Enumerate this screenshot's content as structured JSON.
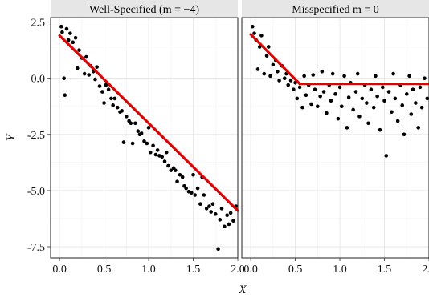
{
  "chart_data": {
    "type": "scatter",
    "xlabel": "X",
    "ylabel": "Y",
    "xlim": [
      -0.1,
      2.0
    ],
    "ylim": [
      -8.0,
      2.7
    ],
    "x_ticks": [
      0.0,
      0.5,
      1.0,
      1.5,
      2.0
    ],
    "x_tick_labels": [
      "0.0",
      "0.5",
      "1.0",
      "1.5",
      "2.0"
    ],
    "y_ticks": [
      2.5,
      0.0,
      -2.5,
      -5.0,
      -7.5
    ],
    "y_tick_labels": [
      "2.5",
      "0.0",
      "-2.5",
      "-5.0",
      "-7.5"
    ],
    "grid": true,
    "colors": {
      "points": "#000000",
      "fit": "#e00000",
      "strip": "#e6e6e6"
    },
    "panels": [
      {
        "title": "Well-Specified (m = −4)",
        "fit_line": {
          "x": [
            0.0,
            2.0
          ],
          "y": [
            1.9,
            -5.9
          ]
        },
        "points": [
          [
            0.02,
            2.3
          ],
          [
            0.03,
            2.05
          ],
          [
            0.05,
            0.0
          ],
          [
            0.06,
            -0.75
          ],
          [
            0.08,
            2.2
          ],
          [
            0.1,
            1.7
          ],
          [
            0.12,
            2.0
          ],
          [
            0.15,
            1.6
          ],
          [
            0.18,
            1.8
          ],
          [
            0.2,
            0.45
          ],
          [
            0.22,
            1.25
          ],
          [
            0.25,
            0.9
          ],
          [
            0.28,
            0.2
          ],
          [
            0.3,
            0.95
          ],
          [
            0.33,
            0.15
          ],
          [
            0.35,
            0.55
          ],
          [
            0.38,
            0.3
          ],
          [
            0.4,
            -0.05
          ],
          [
            0.42,
            0.5
          ],
          [
            0.45,
            -0.35
          ],
          [
            0.48,
            -0.6
          ],
          [
            0.5,
            -1.1
          ],
          [
            0.52,
            -0.3
          ],
          [
            0.55,
            -0.5
          ],
          [
            0.58,
            -0.9
          ],
          [
            0.6,
            -1.2
          ],
          [
            0.62,
            -0.9
          ],
          [
            0.65,
            -1.3
          ],
          [
            0.68,
            -1.5
          ],
          [
            0.7,
            -1.45
          ],
          [
            0.72,
            -2.85
          ],
          [
            0.75,
            -1.7
          ],
          [
            0.78,
            -1.9
          ],
          [
            0.8,
            -2.0
          ],
          [
            0.82,
            -2.9
          ],
          [
            0.85,
            -2.0
          ],
          [
            0.88,
            -2.35
          ],
          [
            0.9,
            -2.5
          ],
          [
            0.92,
            -2.45
          ],
          [
            0.95,
            -2.8
          ],
          [
            0.98,
            -2.9
          ],
          [
            1.0,
            -2.2
          ],
          [
            1.02,
            -3.3
          ],
          [
            1.05,
            -3.0
          ],
          [
            1.08,
            -3.4
          ],
          [
            1.1,
            -3.2
          ],
          [
            1.12,
            -3.45
          ],
          [
            1.15,
            -3.5
          ],
          [
            1.18,
            -3.7
          ],
          [
            1.2,
            -3.3
          ],
          [
            1.22,
            -3.9
          ],
          [
            1.25,
            -4.1
          ],
          [
            1.28,
            -4.0
          ],
          [
            1.3,
            -4.1
          ],
          [
            1.32,
            -4.6
          ],
          [
            1.35,
            -4.3
          ],
          [
            1.38,
            -4.4
          ],
          [
            1.4,
            -4.8
          ],
          [
            1.42,
            -4.9
          ],
          [
            1.45,
            -5.05
          ],
          [
            1.48,
            -5.1
          ],
          [
            1.5,
            -4.3
          ],
          [
            1.52,
            -5.2
          ],
          [
            1.55,
            -4.9
          ],
          [
            1.58,
            -5.6
          ],
          [
            1.6,
            -4.4
          ],
          [
            1.62,
            -5.2
          ],
          [
            1.65,
            -5.8
          ],
          [
            1.68,
            -5.7
          ],
          [
            1.7,
            -5.95
          ],
          [
            1.72,
            -5.6
          ],
          [
            1.75,
            -6.05
          ],
          [
            1.78,
            -7.6
          ],
          [
            1.8,
            -6.3
          ],
          [
            1.82,
            -5.8
          ],
          [
            1.85,
            -6.6
          ],
          [
            1.88,
            -6.1
          ],
          [
            1.9,
            -6.5
          ],
          [
            1.92,
            -6.0
          ],
          [
            1.95,
            -6.35
          ],
          [
            1.98,
            -5.7
          ]
        ]
      },
      {
        "title": "Misspecified m = 0",
        "fit_line": {
          "x": [
            0.0,
            0.55,
            2.0
          ],
          "y": [
            1.95,
            -0.25,
            -0.25
          ]
        },
        "points": [
          [
            0.02,
            2.3
          ],
          [
            0.04,
            2.0
          ],
          [
            0.06,
            1.7
          ],
          [
            0.08,
            0.4
          ],
          [
            0.1,
            1.4
          ],
          [
            0.12,
            1.9
          ],
          [
            0.15,
            0.2
          ],
          [
            0.18,
            1.0
          ],
          [
            0.2,
            1.4
          ],
          [
            0.22,
            0.1
          ],
          [
            0.25,
            0.6
          ],
          [
            0.28,
            0.8
          ],
          [
            0.3,
            0.3
          ],
          [
            0.32,
            -0.1
          ],
          [
            0.35,
            0.55
          ],
          [
            0.38,
            0.0
          ],
          [
            0.4,
            0.2
          ],
          [
            0.42,
            -0.3
          ],
          [
            0.45,
            -0.1
          ],
          [
            0.48,
            -0.5
          ],
          [
            0.5,
            -0.2
          ],
          [
            0.52,
            -0.9
          ],
          [
            0.55,
            -0.4
          ],
          [
            0.58,
            -1.3
          ],
          [
            0.6,
            0.1
          ],
          [
            0.62,
            -0.75
          ],
          [
            0.65,
            -0.3
          ],
          [
            0.68,
            -1.15
          ],
          [
            0.7,
            0.15
          ],
          [
            0.72,
            -0.5
          ],
          [
            0.75,
            -1.25
          ],
          [
            0.78,
            -0.8
          ],
          [
            0.8,
            0.3
          ],
          [
            0.82,
            -0.6
          ],
          [
            0.85,
            -1.55
          ],
          [
            0.88,
            -0.3
          ],
          [
            0.9,
            -1.0
          ],
          [
            0.92,
            0.2
          ],
          [
            0.95,
            -0.7
          ],
          [
            0.98,
            -1.8
          ],
          [
            1.0,
            -0.4
          ],
          [
            1.02,
            -1.25
          ],
          [
            1.05,
            0.1
          ],
          [
            1.08,
            -2.2
          ],
          [
            1.1,
            -0.85
          ],
          [
            1.12,
            -0.2
          ],
          [
            1.15,
            -1.4
          ],
          [
            1.18,
            -0.6
          ],
          [
            1.2,
            0.2
          ],
          [
            1.22,
            -1.7
          ],
          [
            1.25,
            -0.9
          ],
          [
            1.28,
            -0.3
          ],
          [
            1.3,
            -1.1
          ],
          [
            1.32,
            -2.0
          ],
          [
            1.35,
            -0.5
          ],
          [
            1.38,
            -1.3
          ],
          [
            1.4,
            0.1
          ],
          [
            1.42,
            -0.8
          ],
          [
            1.45,
            -2.3
          ],
          [
            1.48,
            -0.4
          ],
          [
            1.5,
            -1.0
          ],
          [
            1.52,
            -3.45
          ],
          [
            1.55,
            -0.6
          ],
          [
            1.58,
            -1.5
          ],
          [
            1.6,
            0.2
          ],
          [
            1.62,
            -0.9
          ],
          [
            1.65,
            -1.9
          ],
          [
            1.68,
            -0.3
          ],
          [
            1.7,
            -1.2
          ],
          [
            1.72,
            -2.5
          ],
          [
            1.75,
            -0.7
          ],
          [
            1.78,
            0.1
          ],
          [
            1.8,
            -1.6
          ],
          [
            1.82,
            -0.5
          ],
          [
            1.85,
            -1.1
          ],
          [
            1.88,
            -2.2
          ],
          [
            1.9,
            -0.4
          ],
          [
            1.92,
            -1.3
          ],
          [
            1.95,
            0.0
          ],
          [
            1.98,
            -0.9
          ]
        ]
      }
    ]
  }
}
